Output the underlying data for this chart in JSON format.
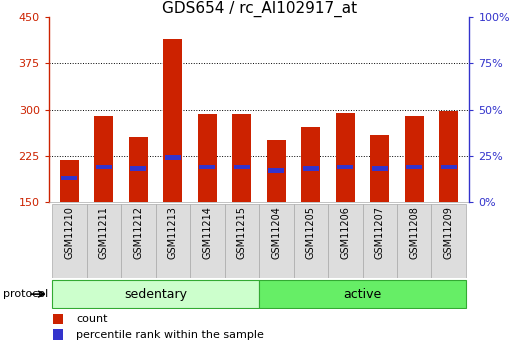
{
  "title": "GDS654 / rc_AI102917_at",
  "samples": [
    "GSM11210",
    "GSM11211",
    "GSM11212",
    "GSM11213",
    "GSM11214",
    "GSM11215",
    "GSM11204",
    "GSM11205",
    "GSM11206",
    "GSM11207",
    "GSM11208",
    "GSM11209"
  ],
  "count_values": [
    218,
    290,
    255,
    415,
    293,
    292,
    250,
    272,
    295,
    258,
    290,
    297
  ],
  "percentile_values": [
    13,
    19,
    18,
    24,
    19,
    19,
    17,
    18,
    19,
    18,
    19,
    19
  ],
  "ymin": 150,
  "ymax": 450,
  "yticks": [
    150,
    225,
    300,
    375,
    450
  ],
  "right_yticks": [
    0,
    25,
    50,
    75,
    100
  ],
  "groups": [
    {
      "label": "sedentary",
      "start": 0,
      "end": 6,
      "color": "#ccffcc"
    },
    {
      "label": "active",
      "start": 6,
      "end": 12,
      "color": "#66ee66"
    }
  ],
  "protocol_label": "protocol",
  "bar_color_red": "#cc2200",
  "bar_color_blue": "#3333cc",
  "bar_width": 0.55,
  "background_color": "#ffffff",
  "title_fontsize": 11,
  "tick_fontsize": 8,
  "label_fontsize": 7,
  "legend_red": "count",
  "legend_blue": "percentile rank within the sample",
  "left_axis_color": "#cc2200",
  "right_axis_color": "#3333cc",
  "sample_box_color": "#dddddd",
  "sample_box_edge": "#aaaaaa"
}
